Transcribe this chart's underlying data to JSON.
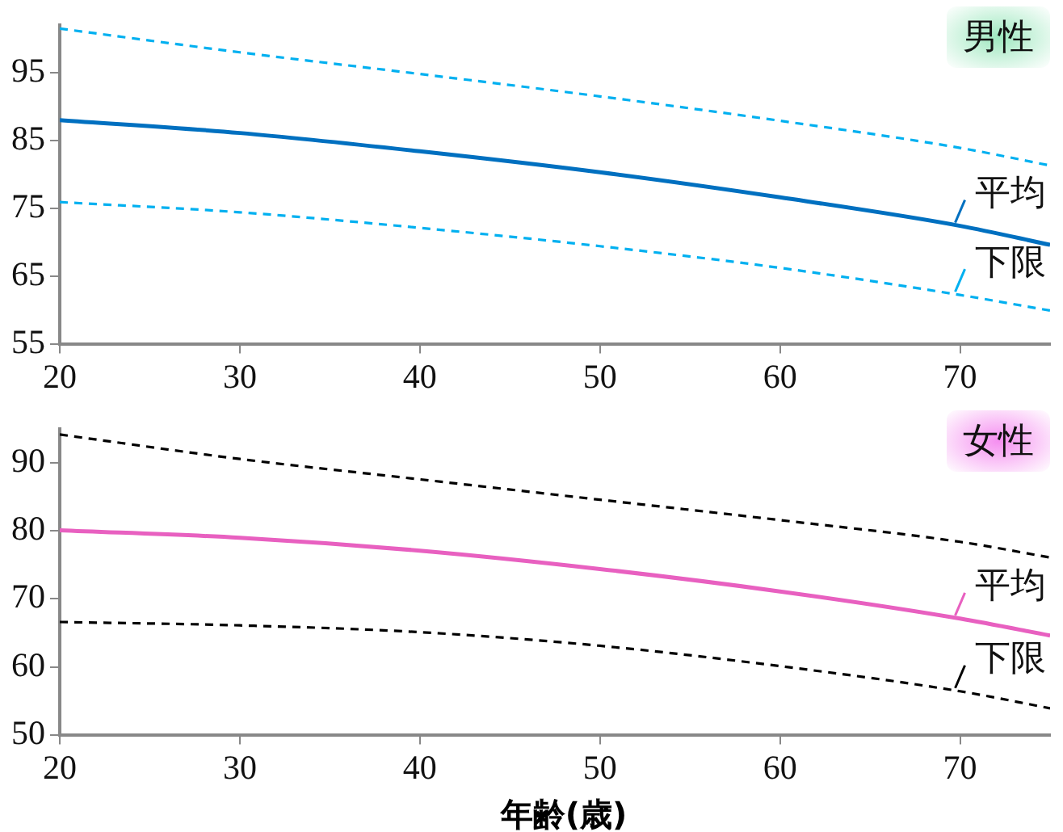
{
  "chart_data": [
    {
      "type": "line",
      "title": "男性",
      "x": [
        20,
        30,
        40,
        50,
        60,
        70,
        75
      ],
      "xlim": [
        20,
        75
      ],
      "xticks": [
        20,
        30,
        40,
        50,
        60,
        70
      ],
      "ylim": [
        55,
        102
      ],
      "yticks": [
        55,
        65,
        75,
        85,
        95
      ],
      "grid": false,
      "legend": "right",
      "marker": "none",
      "series": [
        {
          "color": "#00b0f0",
          "line_style": "dashed",
          "values": [
            101.5,
            98.0,
            94.8,
            91.5,
            87.9,
            83.9,
            81.3
          ]
        },
        {
          "name": "平均",
          "color": "#0070c0",
          "line_style": "solid",
          "values": [
            88.0,
            86.1,
            83.4,
            80.3,
            76.6,
            72.4,
            69.6
          ]
        },
        {
          "name": "下限",
          "color": "#00b0f0",
          "line_style": "dashed",
          "values": [
            75.9,
            74.4,
            72.1,
            69.4,
            66.2,
            62.2,
            59.9
          ]
        }
      ]
    },
    {
      "type": "line",
      "title": "女性",
      "xlabel": "年齢(歳)",
      "x": [
        20,
        30,
        40,
        50,
        60,
        70,
        75
      ],
      "xlim": [
        20,
        75
      ],
      "xticks": [
        20,
        30,
        40,
        50,
        60,
        70
      ],
      "ylim": [
        50,
        95
      ],
      "yticks": [
        50,
        60,
        70,
        80,
        90
      ],
      "grid": false,
      "legend": "right",
      "marker": "none",
      "series": [
        {
          "color": "#000000",
          "line_style": "dashed",
          "values": [
            94.2,
            90.6,
            87.6,
            84.6,
            81.6,
            78.4,
            76.1
          ]
        },
        {
          "name": "平均",
          "color": "#e860c0",
          "line_style": "solid",
          "values": [
            80.1,
            79.0,
            77.1,
            74.4,
            71.1,
            67.1,
            64.6
          ]
        },
        {
          "name": "下限",
          "color": "#000000",
          "line_style": "dashed",
          "values": [
            66.6,
            66.1,
            65.1,
            63.1,
            60.1,
            56.4,
            53.9
          ]
        }
      ]
    }
  ]
}
